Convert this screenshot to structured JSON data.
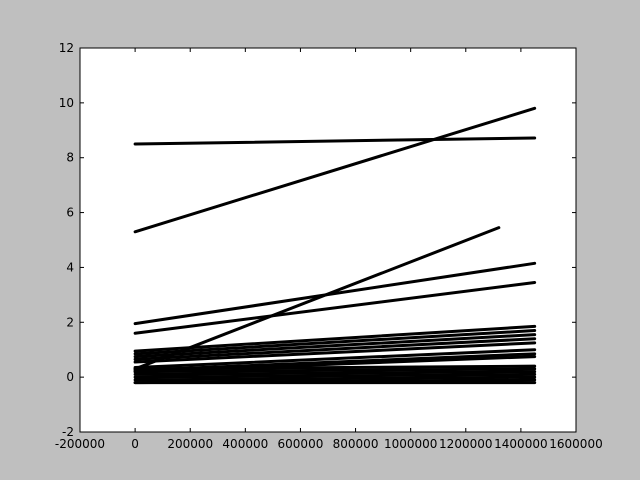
{
  "chart_data": {
    "type": "line",
    "title": "",
    "xlabel": "",
    "ylabel": "",
    "xlim": [
      -200000,
      1600000
    ],
    "ylim": [
      -2,
      12
    ],
    "xticks": [
      -200000,
      0,
      200000,
      400000,
      600000,
      800000,
      1000000,
      1200000,
      1400000,
      1600000
    ],
    "yticks": [
      -2,
      0,
      2,
      4,
      6,
      8,
      10,
      12
    ],
    "xtick_labels": [
      "-200000",
      "0",
      "200000",
      "400000",
      "600000",
      "800000",
      "1000000",
      "1200000",
      "1400000",
      "1600000"
    ],
    "ytick_labels": [
      "-2",
      "0",
      "2",
      "4",
      "6",
      "8",
      "10",
      "12"
    ],
    "grid": false,
    "legend": "none",
    "line_color": "#000000",
    "series": [
      {
        "x": [
          0,
          1450000
        ],
        "y": [
          8.5,
          8.72
        ]
      },
      {
        "x": [
          0,
          1450000
        ],
        "y": [
          5.3,
          9.8
        ]
      },
      {
        "x": [
          0,
          1320000
        ],
        "y": [
          0.3,
          5.45
        ]
      },
      {
        "x": [
          0,
          1450000
        ],
        "y": [
          1.95,
          4.15
        ]
      },
      {
        "x": [
          0,
          1450000
        ],
        "y": [
          1.6,
          3.45
        ]
      },
      {
        "x": [
          0,
          1450000
        ],
        "y": [
          0.95,
          1.85
        ]
      },
      {
        "x": [
          0,
          1450000
        ],
        "y": [
          0.85,
          1.7
        ]
      },
      {
        "x": [
          0,
          1450000
        ],
        "y": [
          0.75,
          1.55
        ]
      },
      {
        "x": [
          0,
          1450000
        ],
        "y": [
          0.65,
          1.4
        ]
      },
      {
        "x": [
          0,
          1450000
        ],
        "y": [
          0.55,
          1.25
        ]
      },
      {
        "x": [
          0,
          1450000
        ],
        "y": [
          0.35,
          1.0
        ]
      },
      {
        "x": [
          0,
          1450000
        ],
        "y": [
          0.25,
          0.85
        ]
      },
      {
        "x": [
          0,
          1450000
        ],
        "y": [
          0.2,
          0.75
        ]
      },
      {
        "x": [
          0,
          1450000
        ],
        "y": [
          0.3,
          0.4
        ]
      },
      {
        "x": [
          0,
          1450000
        ],
        "y": [
          0.2,
          0.3
        ]
      },
      {
        "x": [
          0,
          1450000
        ],
        "y": [
          0.1,
          0.2
        ]
      },
      {
        "x": [
          0,
          1450000
        ],
        "y": [
          0.0,
          0.1
        ]
      },
      {
        "x": [
          0,
          1450000
        ],
        "y": [
          -0.1,
          0.0
        ]
      },
      {
        "x": [
          0,
          1450000
        ],
        "y": [
          -0.2,
          -0.1
        ]
      },
      {
        "x": [
          0,
          1450000
        ],
        "y": [
          -0.2,
          -0.2
        ]
      }
    ]
  }
}
